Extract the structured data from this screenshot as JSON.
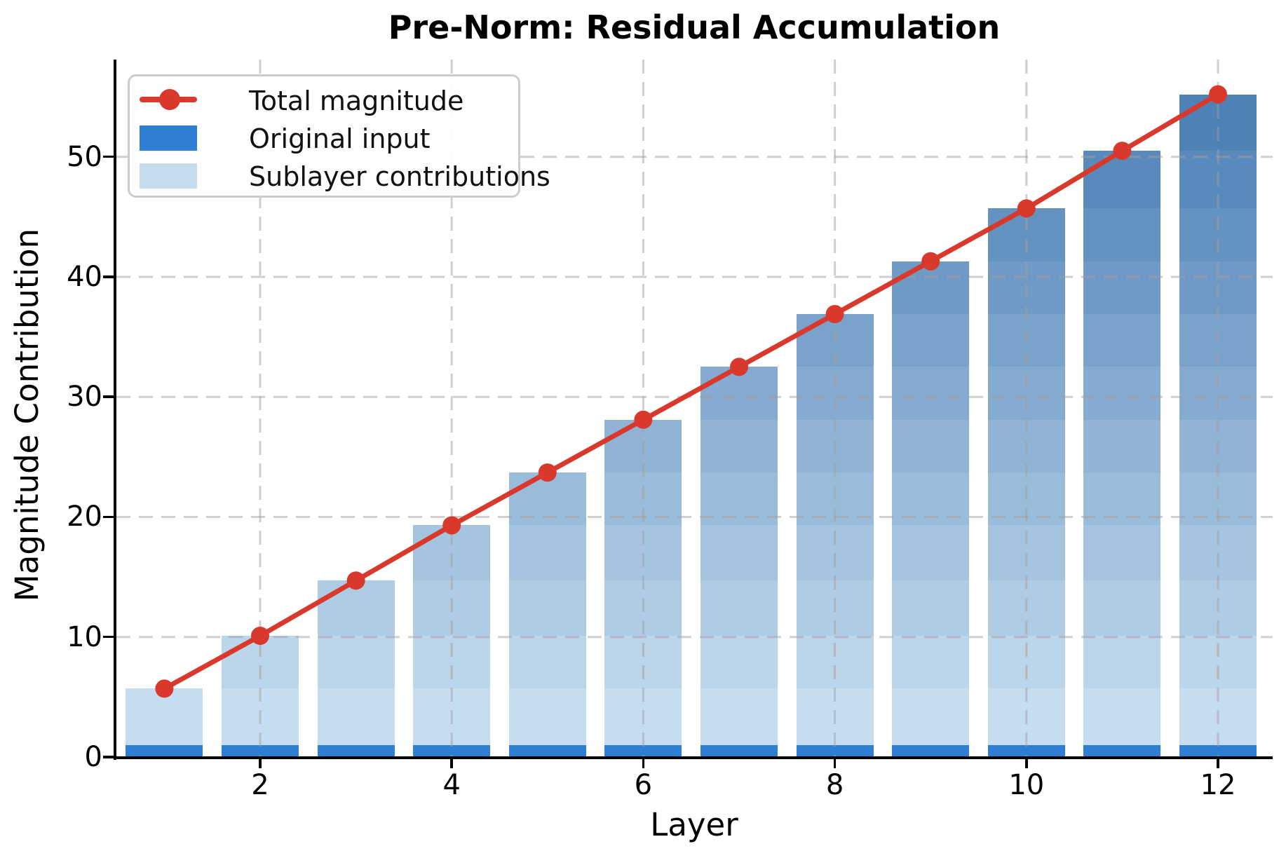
{
  "chart_data": {
    "type": "bar",
    "subtype": "stacked-bar-with-line-overlay",
    "title": "Pre-Norm: Residual Accumulation",
    "xlabel": "Layer",
    "ylabel": "Magnitude Contribution",
    "x": [
      1,
      2,
      3,
      4,
      5,
      6,
      7,
      8,
      9,
      10,
      11,
      12
    ],
    "x_ticks": [
      2,
      4,
      6,
      8,
      10,
      12
    ],
    "y_ticks": [
      0,
      10,
      20,
      30,
      40,
      50
    ],
    "xlim": [
      0.5,
      12.6
    ],
    "ylim": [
      0,
      58.1
    ],
    "grid": "dashed-both-axes",
    "legend_position": "upper-left",
    "line_series": {
      "name": "Total magnitude",
      "color": "#d9382c",
      "marker": "circle",
      "values": [
        5.7,
        10.1,
        14.7,
        19.3,
        23.7,
        28.1,
        32.5,
        36.9,
        41.3,
        45.7,
        50.5,
        55.2
      ]
    },
    "bar_base_series": {
      "name": "Original input",
      "color": "#2e7fd4",
      "value_per_layer": 1.0
    },
    "sublayer_series": {
      "name": "Sublayer contributions",
      "legend_color": "#c6ddf0",
      "stacking_rule": "bar at layer L stacks original input then sublayer contributions 1..L; cumulative tops equal the total magnitude line",
      "contributions": [
        4.7,
        4.4,
        4.6,
        4.6,
        4.4,
        4.4,
        4.4,
        4.4,
        4.4,
        4.4,
        4.8,
        4.7
      ],
      "segment_colors": [
        "#c6ddf0",
        "#bbd5eb",
        "#b0cce5",
        "#a5c4e0",
        "#9abcdb",
        "#90b3d6",
        "#85abd0",
        "#7aa3cb",
        "#6f9ac6",
        "#6492c1",
        "#598abb",
        "#4e82b6"
      ]
    }
  },
  "legend": {
    "items": [
      {
        "label": "Total magnitude",
        "swatch": "red-line-with-marker"
      },
      {
        "label": "Original input",
        "swatch": "blue-patch"
      },
      {
        "label": "Sublayer contributions",
        "swatch": "light-blue-patch"
      }
    ]
  },
  "colors": {
    "line_red": "#d9382c",
    "original_input_blue": "#2e7fd4",
    "sublayer_light_blue": "#c6ddf0",
    "gridline_gray": "#d8d8d8",
    "spine_black": "#000000"
  }
}
